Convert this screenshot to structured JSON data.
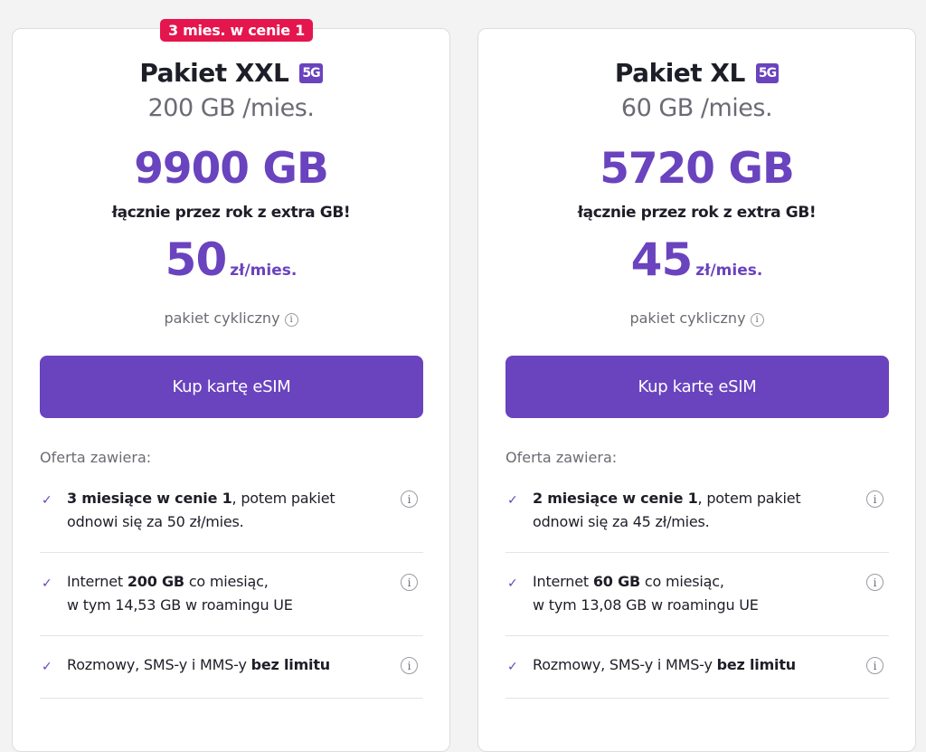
{
  "colors": {
    "accent": "#6a43be",
    "badge": "#e5154d"
  },
  "cards": [
    {
      "badge": "3 mies. w cenie 1",
      "title": "Pakiet XXL",
      "tech": "5G",
      "subtitle": "200 GB /mies.",
      "total": "9900 GB",
      "tagline": "łącznie przez rok z extra GB!",
      "price": "50",
      "price_unit": "zł/mies.",
      "cycle": "pakiet cykliczny",
      "button": "Kup kartę eSIM",
      "offer_label": "Oferta zawiera:",
      "features": [
        [
          {
            "t": "3 miesiące w cenie 1",
            "b": true
          },
          {
            "t": ", potem pakiet odnowi się za 50 zł/mies.",
            "b": false
          }
        ],
        [
          {
            "t": "Internet ",
            "b": false
          },
          {
            "t": "200 GB",
            "b": true
          },
          {
            "t": " co miesiąc,\nw tym 14,53 GB w roamingu UE",
            "b": false
          }
        ],
        [
          {
            "t": "Rozmowy, SMS-y i MMS-y ",
            "b": false
          },
          {
            "t": "bez limitu",
            "b": true
          }
        ]
      ]
    },
    {
      "badge": "",
      "title": "Pakiet XL",
      "tech": "5G",
      "subtitle": "60 GB /mies.",
      "total": "5720 GB",
      "tagline": "łącznie przez rok z extra GB!",
      "price": "45",
      "price_unit": "zł/mies.",
      "cycle": "pakiet cykliczny",
      "button": "Kup kartę eSIM",
      "offer_label": "Oferta zawiera:",
      "features": [
        [
          {
            "t": "2 miesiące w cenie 1",
            "b": true
          },
          {
            "t": ", potem pakiet odnowi się za 45 zł/mies.",
            "b": false
          }
        ],
        [
          {
            "t": "Internet ",
            "b": false
          },
          {
            "t": "60 GB",
            "b": true
          },
          {
            "t": " co miesiąc,\nw tym 13,08 GB w roamingu UE",
            "b": false
          }
        ],
        [
          {
            "t": "Rozmowy, SMS-y i MMS-y ",
            "b": false
          },
          {
            "t": "bez limitu",
            "b": true
          }
        ]
      ]
    }
  ]
}
